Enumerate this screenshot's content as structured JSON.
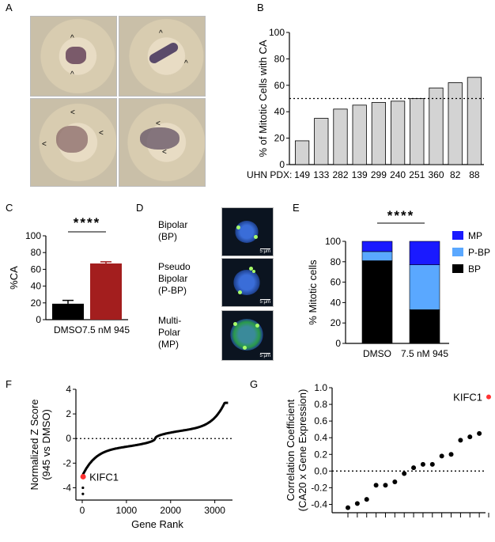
{
  "panels": {
    "a": {
      "label": "A",
      "arrowheads": "^",
      "chevron": "<"
    },
    "b": {
      "label": "B"
    },
    "c": {
      "label": "C"
    },
    "d": {
      "label": "D",
      "rows": [
        {
          "line1": "Bipolar",
          "line2": "(BP)",
          "scale": "5 μm"
        },
        {
          "line1": "Pseudo",
          "line2": "Bipolar",
          "line3": "(P-BP)",
          "scale": "5 μm"
        },
        {
          "line1": "Multi-",
          "line2": "Polar",
          "line3": "(MP)",
          "scale": "5 μm"
        }
      ]
    },
    "e": {
      "label": "E"
    },
    "f": {
      "label": "F"
    },
    "g": {
      "label": "G"
    }
  },
  "colors": {
    "bar_gray": "#d3d3d3",
    "bar_black": "#000000",
    "bar_red": "#a31e1e",
    "mp": "#1a1aff",
    "pbp": "#5aa8ff",
    "bp": "#000000",
    "highlight": "#ff3333"
  },
  "chart_data": [
    {
      "id": "B",
      "type": "bar",
      "ylabel": "% of Mitotic Cells with CA",
      "xlabel_prefix": "UHN PDX:",
      "categories": [
        "149",
        "133",
        "282",
        "139",
        "299",
        "240",
        "251",
        "360",
        "82",
        "88"
      ],
      "values": [
        18,
        35,
        42,
        45,
        47,
        48,
        50,
        58,
        62,
        66
      ],
      "ylim": [
        0,
        100
      ],
      "yticks": [
        0,
        20,
        40,
        60,
        80,
        100
      ],
      "reference_line": 50
    },
    {
      "id": "C",
      "type": "bar",
      "ylabel": "%CA",
      "categories": [
        "DMSO",
        "7.5 nM 945"
      ],
      "values": [
        19,
        67
      ],
      "errors": [
        4,
        2
      ],
      "ylim": [
        0,
        100
      ],
      "yticks": [
        0,
        20,
        40,
        60,
        80,
        100
      ],
      "significance": "****"
    },
    {
      "id": "E",
      "type": "bar",
      "stacked": true,
      "ylabel": "% Mitotic cells",
      "categories": [
        "DMSO",
        "7.5 nM 945"
      ],
      "series": [
        {
          "name": "BP",
          "values": [
            81,
            33
          ]
        },
        {
          "name": "P-BP",
          "values": [
            9,
            44
          ]
        },
        {
          "name": "MP",
          "values": [
            10,
            23
          ]
        }
      ],
      "legend_order": [
        "MP",
        "P-BP",
        "BP"
      ],
      "ylim": [
        0,
        100
      ],
      "yticks": [
        0,
        20,
        40,
        60,
        80,
        100
      ],
      "significance": "****"
    },
    {
      "id": "F",
      "type": "scatter",
      "ylabel_line1": "Normalized Z Score",
      "ylabel_line2": "(945 vs DMSO)",
      "xlabel": "Gene Rank",
      "xlim": [
        0,
        3400
      ],
      "ylim": [
        -5,
        4
      ],
      "xticks": [
        0,
        1000,
        2000,
        3000
      ],
      "yticks": [
        -4,
        -2,
        0,
        2,
        4
      ],
      "reference_line": 0,
      "n_genes": 3300,
      "highlight": {
        "label": "KIFC1",
        "x": 20,
        "y": -3.1
      }
    },
    {
      "id": "G",
      "type": "scatter",
      "ylabel_line1": "Correlation Coefficient",
      "ylabel_line2": "(CA20 x Gene Expression)",
      "ylim": [
        -0.5,
        1.0
      ],
      "yticks": [
        -0.4,
        -0.2,
        0.0,
        0.2,
        0.4,
        0.6,
        0.8,
        1.0
      ],
      "ytick_labels": [
        "-0.4",
        "-0.2",
        "0.0",
        "0.2",
        "0.4",
        "0.6",
        "0.8",
        "1.0"
      ],
      "reference_line": 0,
      "points": [
        -0.44,
        -0.39,
        -0.34,
        -0.17,
        -0.17,
        -0.13,
        -0.03,
        0.04,
        0.08,
        0.08,
        0.18,
        0.2,
        0.37,
        0.41,
        0.45,
        0.89
      ],
      "highlight": {
        "label": "KIFC1",
        "index": 15
      }
    }
  ]
}
